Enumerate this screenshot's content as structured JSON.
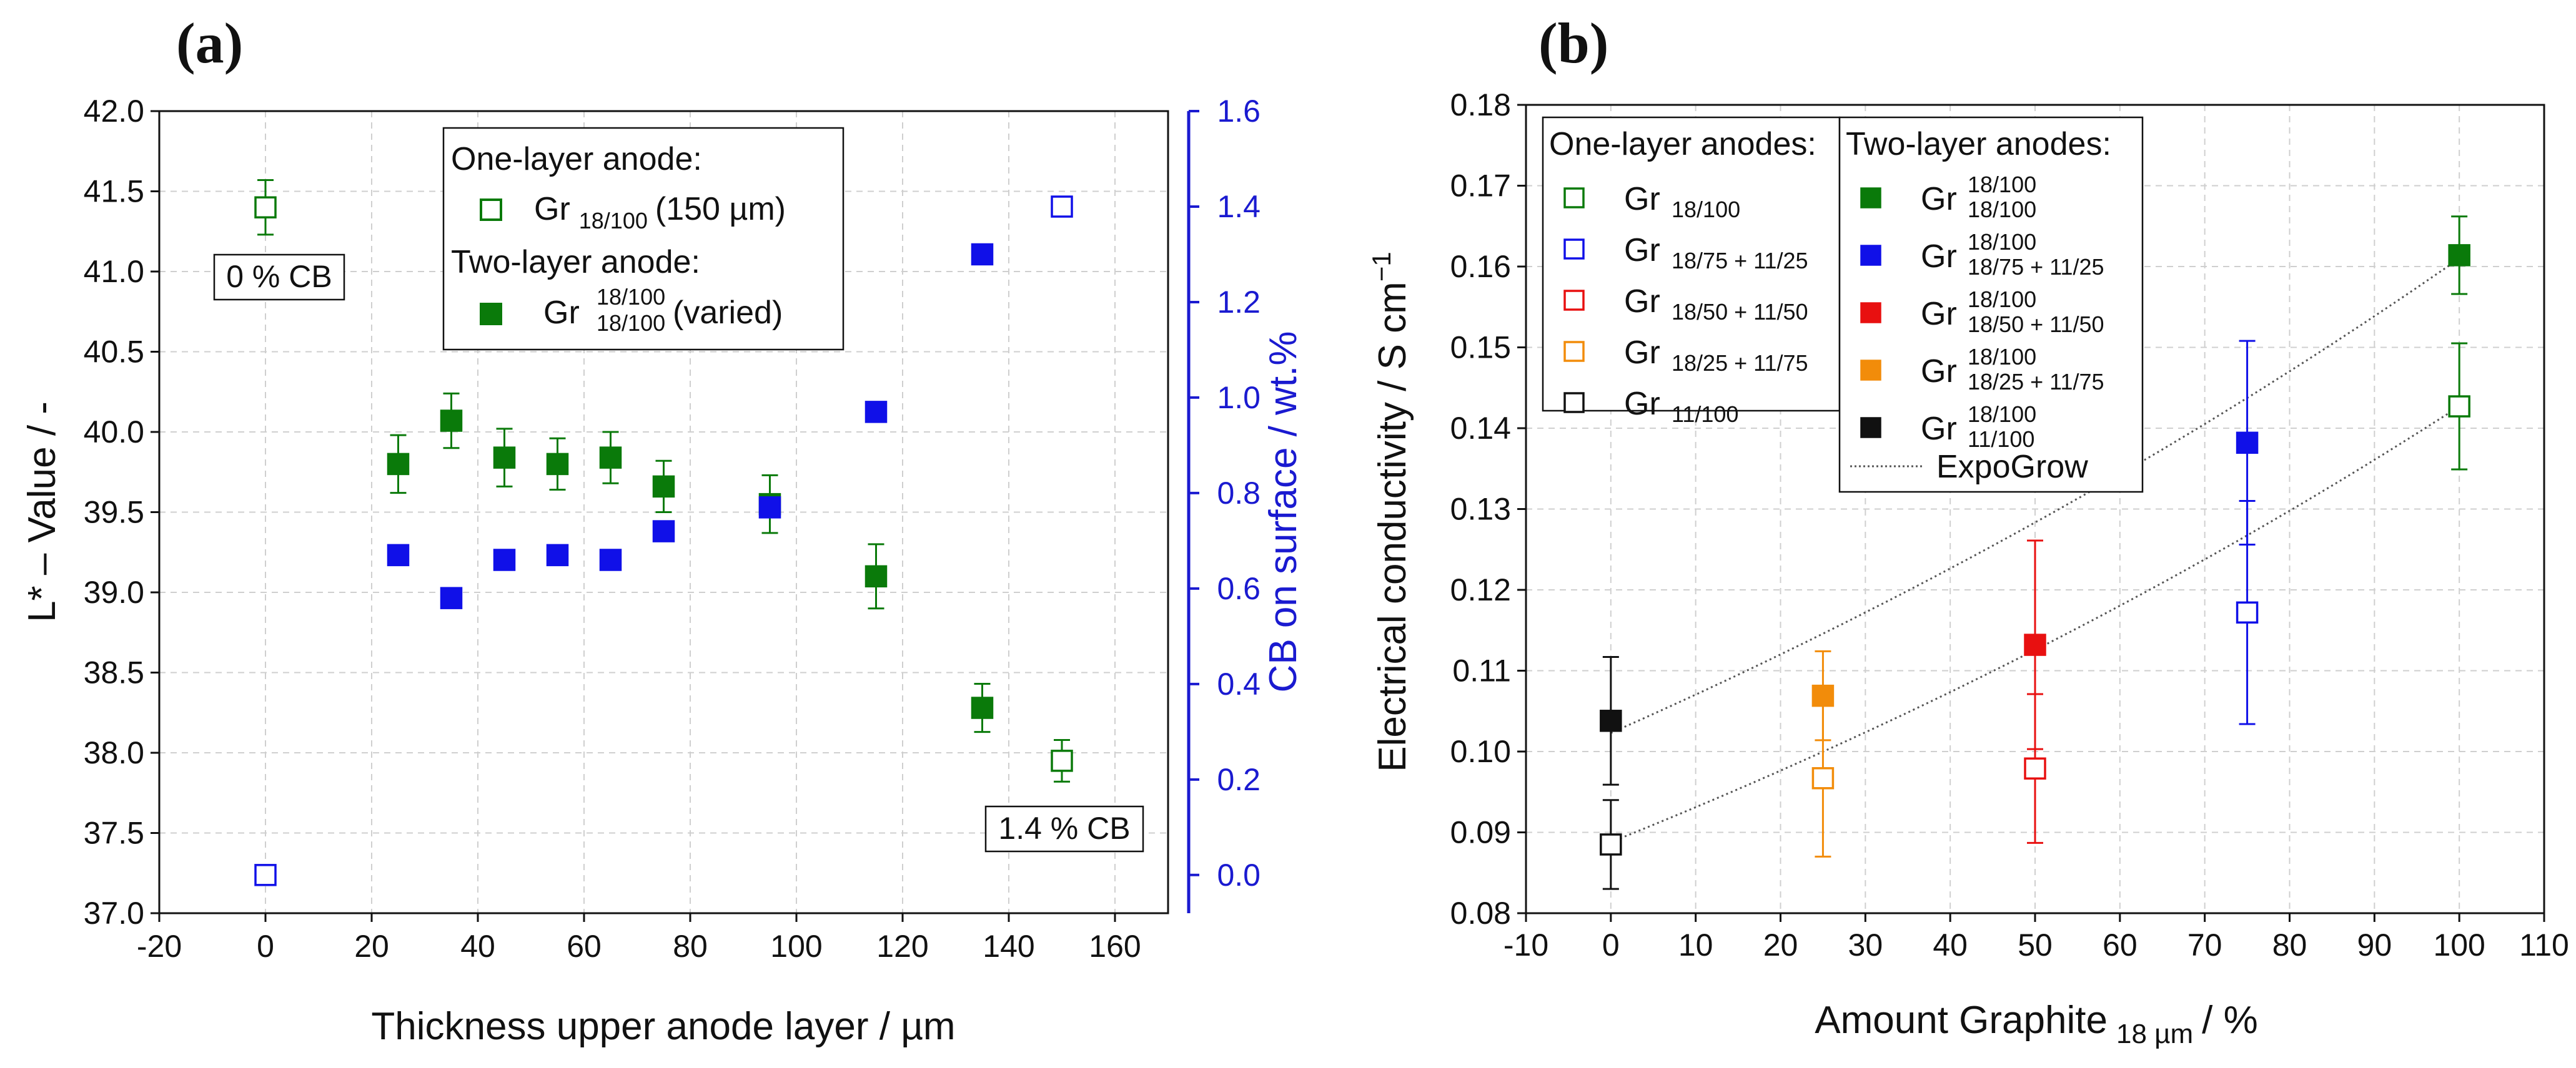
{
  "chart_data": [
    {
      "panel_label": "(a)",
      "type": "scatter",
      "xlabel": "Thickness upper anode layer / µm",
      "ylabel": "L* – Value / -",
      "y2label": "CB on surface / wt.%",
      "xlim": [
        -20,
        170
      ],
      "ylim": [
        37.0,
        42.0
      ],
      "y2lim": [
        -0.08,
        1.6
      ],
      "xticks": [
        -20,
        0,
        20,
        40,
        60,
        80,
        100,
        120,
        140,
        160
      ],
      "yticks": [
        37.0,
        37.5,
        38.0,
        38.5,
        39.0,
        39.5,
        40.0,
        40.5,
        41.0,
        41.5,
        42.0
      ],
      "y2ticks": [
        0.0,
        0.2,
        0.4,
        0.6,
        0.8,
        1.0,
        1.2,
        1.4,
        1.6
      ],
      "grid": true,
      "colors": {
        "green": "#0a7a0a",
        "blue": "#1010e8",
        "axis2": "#1a1ad0"
      },
      "legend": {
        "position": "top-center",
        "header_one": "One-layer anode:",
        "header_two": "Two-layer anode:",
        "one_main": "Gr",
        "one_sub": "18/100",
        "one_suffix": "(150 µm)",
        "two_main": "Gr",
        "two_sup": "18/100",
        "two_sub": "18/100",
        "two_suffix": "(varied)"
      },
      "annotations": [
        "0 % CB",
        "1.4 % CB"
      ],
      "series": [
        {
          "name": "One-layer L*",
          "marker": "open-square",
          "color": "#0a7a0a",
          "axis": "left",
          "x": [
            0,
            150
          ],
          "y": [
            41.4,
            37.95
          ],
          "err": [
            0.17,
            0.13
          ]
        },
        {
          "name": "Two-layer L*",
          "marker": "filled-square",
          "color": "#0a7a0a",
          "axis": "left",
          "x": [
            25,
            35,
            45,
            55,
            65,
            75,
            95,
            115,
            135
          ],
          "y": [
            39.8,
            40.07,
            39.84,
            39.8,
            39.84,
            39.66,
            39.55,
            39.1,
            38.28
          ],
          "err": [
            0.18,
            0.17,
            0.18,
            0.16,
            0.16,
            0.16,
            0.18,
            0.2,
            0.15
          ]
        },
        {
          "name": "One-layer CB",
          "marker": "open-square",
          "color": "#1010e8",
          "axis": "right",
          "x": [
            0,
            150
          ],
          "y": [
            0.0,
            1.4
          ]
        },
        {
          "name": "Two-layer CB",
          "marker": "filled-square",
          "color": "#1010e8",
          "axis": "right",
          "x": [
            25,
            35,
            45,
            55,
            65,
            75,
            95,
            115,
            135
          ],
          "y": [
            0.67,
            0.58,
            0.66,
            0.67,
            0.66,
            0.72,
            0.77,
            0.97,
            1.3
          ]
        }
      ]
    },
    {
      "panel_label": "(b)",
      "type": "scatter",
      "xlabel_main": "Amount Graphite",
      "xlabel_sub": "18 µm",
      "xlabel_tail": "/ %",
      "ylabel": "Electrical conductivity / S cm",
      "ylabel_sup": "−1",
      "xlim": [
        -10,
        110
      ],
      "ylim": [
        0.08,
        0.18
      ],
      "xticks": [
        -10,
        0,
        10,
        20,
        30,
        40,
        50,
        60,
        70,
        80,
        90,
        100,
        110
      ],
      "yticks": [
        0.08,
        0.09,
        0.1,
        0.11,
        0.12,
        0.13,
        0.14,
        0.15,
        0.16,
        0.17,
        0.18
      ],
      "grid": true,
      "colors": {
        "green": "#0a7a0a",
        "blue": "#1010e8",
        "red": "#e81010",
        "orange": "#f28c0a",
        "black": "#111111",
        "fit": "#555555"
      },
      "legend": {
        "position": "top-left",
        "one_header": "One-layer anodes:",
        "two_header": "Two-layer anodes:",
        "one_entries": [
          {
            "main": "Gr",
            "sub": "18/100"
          },
          {
            "main": "Gr",
            "sub": "18/75 + 11/25"
          },
          {
            "main": "Gr",
            "sub": "18/50 + 11/50"
          },
          {
            "main": "Gr",
            "sub": "18/25 + 11/75"
          },
          {
            "main": "Gr",
            "sub": "11/100"
          }
        ],
        "two_entries": [
          {
            "main": "Gr",
            "sup": "18/100",
            "sub": "18/100"
          },
          {
            "main": "Gr",
            "sup": "18/100",
            "sub": "18/75 + 11/25"
          },
          {
            "main": "Gr",
            "sup": "18/100",
            "sub": "18/50 + 11/50"
          },
          {
            "main": "Gr",
            "sup": "18/100",
            "sub": "18/25 + 11/75"
          },
          {
            "main": "Gr",
            "sup": "18/100",
            "sub": "11/100"
          }
        ],
        "fit_label": "ExpoGrow"
      },
      "series": [
        {
          "name": "One-layer",
          "marker": "open-square",
          "x": [
            0,
            25,
            50,
            75,
            100
          ],
          "y": [
            0.0885,
            0.0967,
            0.0979,
            0.1172,
            0.1427
          ],
          "err": [
            0.0055,
            0.0097,
            0.0092,
            0.0138,
            0.0078
          ],
          "colors": [
            "#111111",
            "#f28c0a",
            "#e81010",
            "#1010e8",
            "#0a7a0a"
          ]
        },
        {
          "name": "Two-layer",
          "marker": "filled-square",
          "x": [
            0,
            25,
            50,
            75,
            100
          ],
          "y": [
            0.1038,
            0.1069,
            0.1132,
            0.1382,
            0.1614
          ],
          "err": [
            0.0079,
            0.0055,
            0.0129,
            0.0126,
            0.0048
          ],
          "colors": [
            "#111111",
            "#f28c0a",
            "#e81010",
            "#1010e8",
            "#0a7a0a"
          ]
        },
        {
          "name": "ExpoGrow one-layer",
          "type": "line",
          "style": "dotted",
          "x": [
            0,
            100
          ],
          "y": [
            0.0888,
            0.1427
          ]
        },
        {
          "name": "ExpoGrow two-layer",
          "type": "line",
          "style": "dotted",
          "x": [
            0,
            100
          ],
          "y": [
            0.1023,
            0.161
          ]
        }
      ]
    }
  ]
}
